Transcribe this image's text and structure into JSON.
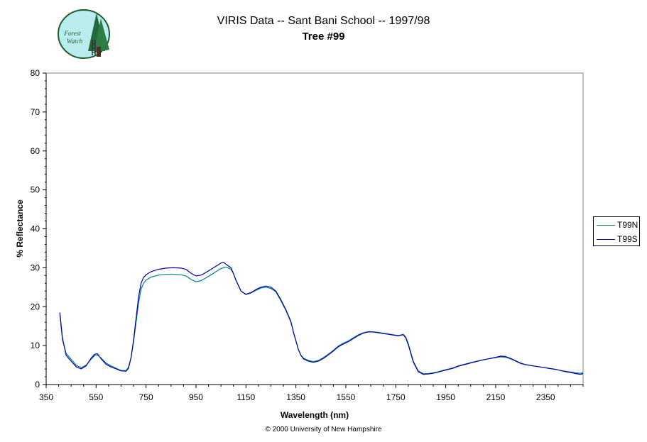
{
  "logo": {
    "text_line1": "Forest",
    "text_line2": "Watch",
    "colors": {
      "fill": "#b9ecec",
      "tree": "#1f6b3a",
      "ring": "#1f5a2e"
    }
  },
  "header": {
    "title": "VIRIS Data -- Sant Bani School -- 1997/98",
    "subtitle": "Tree #99"
  },
  "footer": {
    "copyright": "© 2000 University of New Hampshire"
  },
  "chart_data": {
    "type": "line",
    "title": "VIRIS Data -- Sant Bani School -- 1997/98",
    "subtitle": "Tree #99",
    "xlabel": "Wavelength (nm)",
    "ylabel": "% Reflectance",
    "xlim": [
      350,
      2500
    ],
    "ylim": [
      0,
      80
    ],
    "xticks": [
      350,
      550,
      750,
      950,
      1150,
      1350,
      1550,
      1750,
      1950,
      2150,
      2350
    ],
    "yticks": [
      0,
      10,
      20,
      30,
      40,
      50,
      60,
      70,
      80
    ],
    "grid": false,
    "legend": "right",
    "series": [
      {
        "name": "T99N",
        "color": "#008080",
        "x": [
          405,
          415,
          430,
          450,
          470,
          490,
          510,
          530,
          545,
          555,
          570,
          590,
          610,
          630,
          650,
          670,
          680,
          690,
          700,
          710,
          720,
          730,
          740,
          750,
          770,
          800,
          830,
          860,
          890,
          910,
          930,
          950,
          970,
          990,
          1010,
          1030,
          1050,
          1070,
          1090,
          1100,
          1110,
          1130,
          1150,
          1170,
          1190,
          1210,
          1230,
          1250,
          1270,
          1290,
          1310,
          1330,
          1340,
          1360,
          1370,
          1380,
          1400,
          1420,
          1440,
          1460,
          1480,
          1500,
          1520,
          1540,
          1560,
          1580,
          1600,
          1620,
          1640,
          1660,
          1680,
          1700,
          1720,
          1740,
          1760,
          1780,
          1790,
          1800,
          1820,
          1840,
          1860,
          1880,
          1900,
          1920,
          1950,
          1980,
          2000,
          2030,
          2060,
          2090,
          2120,
          2150,
          2170,
          2190,
          2210,
          2230,
          2250,
          2270,
          2300,
          2330,
          2360,
          2390,
          2410,
          2430,
          2450,
          2470,
          2490,
          2500
        ],
        "y": [
          18.0,
          11.5,
          8.0,
          6.5,
          5.0,
          4.3,
          5.0,
          6.5,
          7.5,
          7.6,
          6.8,
          5.5,
          4.8,
          4.2,
          3.6,
          3.6,
          4.5,
          7.0,
          11.0,
          16.0,
          21.0,
          24.5,
          26.0,
          26.8,
          27.6,
          28.1,
          28.3,
          28.3,
          28.2,
          27.9,
          27.0,
          26.4,
          26.7,
          27.4,
          28.2,
          29.0,
          29.8,
          30.2,
          29.6,
          28.5,
          26.8,
          24.0,
          23.1,
          23.5,
          24.2,
          24.8,
          25.0,
          24.7,
          23.8,
          21.5,
          19.0,
          16.0,
          13.5,
          9.0,
          7.5,
          6.8,
          6.2,
          5.9,
          6.2,
          6.9,
          7.8,
          8.8,
          9.9,
          10.6,
          11.2,
          12.0,
          12.8,
          13.3,
          13.6,
          13.5,
          13.4,
          13.2,
          13.0,
          12.8,
          12.6,
          12.9,
          12.2,
          10.5,
          6.0,
          3.5,
          2.8,
          2.8,
          3.0,
          3.3,
          3.8,
          4.3,
          4.8,
          5.3,
          5.8,
          6.2,
          6.6,
          6.9,
          7.1,
          7.0,
          6.6,
          6.0,
          5.4,
          5.1,
          4.8,
          4.5,
          4.2,
          3.9,
          3.6,
          3.4,
          3.2,
          3.0,
          2.9,
          3.0
        ]
      },
      {
        "name": "T99S",
        "color": "#0000b0",
        "x": [
          405,
          415,
          430,
          450,
          470,
          490,
          510,
          530,
          545,
          555,
          570,
          590,
          610,
          630,
          650,
          670,
          680,
          690,
          700,
          710,
          720,
          730,
          740,
          750,
          770,
          800,
          830,
          860,
          890,
          910,
          930,
          950,
          970,
          990,
          1010,
          1030,
          1050,
          1060,
          1070,
          1090,
          1100,
          1110,
          1130,
          1150,
          1170,
          1190,
          1210,
          1230,
          1250,
          1270,
          1290,
          1310,
          1330,
          1340,
          1360,
          1370,
          1380,
          1400,
          1420,
          1440,
          1460,
          1480,
          1500,
          1520,
          1540,
          1560,
          1580,
          1600,
          1620,
          1640,
          1660,
          1680,
          1700,
          1720,
          1740,
          1760,
          1780,
          1790,
          1800,
          1820,
          1840,
          1860,
          1880,
          1900,
          1920,
          1950,
          1980,
          2000,
          2030,
          2060,
          2090,
          2120,
          2150,
          2170,
          2190,
          2210,
          2230,
          2250,
          2270,
          2300,
          2330,
          2360,
          2390,
          2410,
          2430,
          2450,
          2470,
          2490,
          2500
        ],
        "y": [
          18.5,
          12.0,
          7.5,
          6.0,
          4.6,
          4.0,
          4.8,
          6.8,
          7.8,
          7.9,
          6.6,
          5.2,
          4.5,
          4.0,
          3.5,
          3.4,
          4.2,
          7.0,
          11.5,
          17.0,
          22.5,
          26.0,
          27.5,
          28.2,
          29.0,
          29.6,
          29.9,
          30.0,
          29.9,
          29.6,
          28.6,
          27.9,
          28.1,
          28.8,
          29.6,
          30.4,
          31.2,
          31.4,
          30.9,
          30.0,
          28.5,
          26.8,
          24.0,
          23.2,
          23.6,
          24.4,
          25.0,
          25.3,
          25.0,
          24.0,
          21.8,
          19.2,
          16.2,
          13.5,
          9.0,
          7.5,
          6.6,
          6.0,
          5.7,
          6.0,
          6.7,
          7.6,
          8.6,
          9.7,
          10.4,
          11.0,
          11.8,
          12.6,
          13.2,
          13.5,
          13.5,
          13.3,
          13.1,
          12.9,
          12.7,
          12.5,
          12.8,
          12.0,
          10.2,
          5.8,
          3.3,
          2.6,
          2.7,
          2.9,
          3.2,
          3.7,
          4.2,
          4.7,
          5.2,
          5.7,
          6.2,
          6.6,
          7.0,
          7.3,
          7.2,
          6.7,
          6.1,
          5.5,
          5.1,
          4.8,
          4.5,
          4.2,
          3.9,
          3.6,
          3.3,
          3.1,
          2.8,
          2.6,
          2.8
        ]
      }
    ]
  }
}
